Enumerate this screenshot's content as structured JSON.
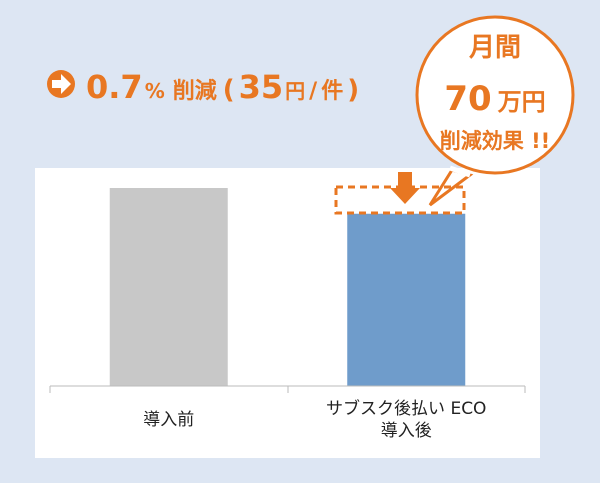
{
  "headline": [
    "0.7",
    "%",
    "削減",
    "(",
    "35",
    "円",
    "/",
    "件",
    ")"
  ],
  "callout": {
    "line1": "月間",
    "amount": "70",
    "unit": "万円",
    "line3": "削減効果 !!"
  },
  "chart_data": {
    "type": "bar",
    "categories": [
      "導入前",
      "サブスク後払い ECO\n導入後"
    ],
    "values": [
      100,
      87
    ],
    "colors": [
      "#c8c8c8",
      "#6f9ccb"
    ],
    "ylim": [
      0,
      100
    ]
  }
}
